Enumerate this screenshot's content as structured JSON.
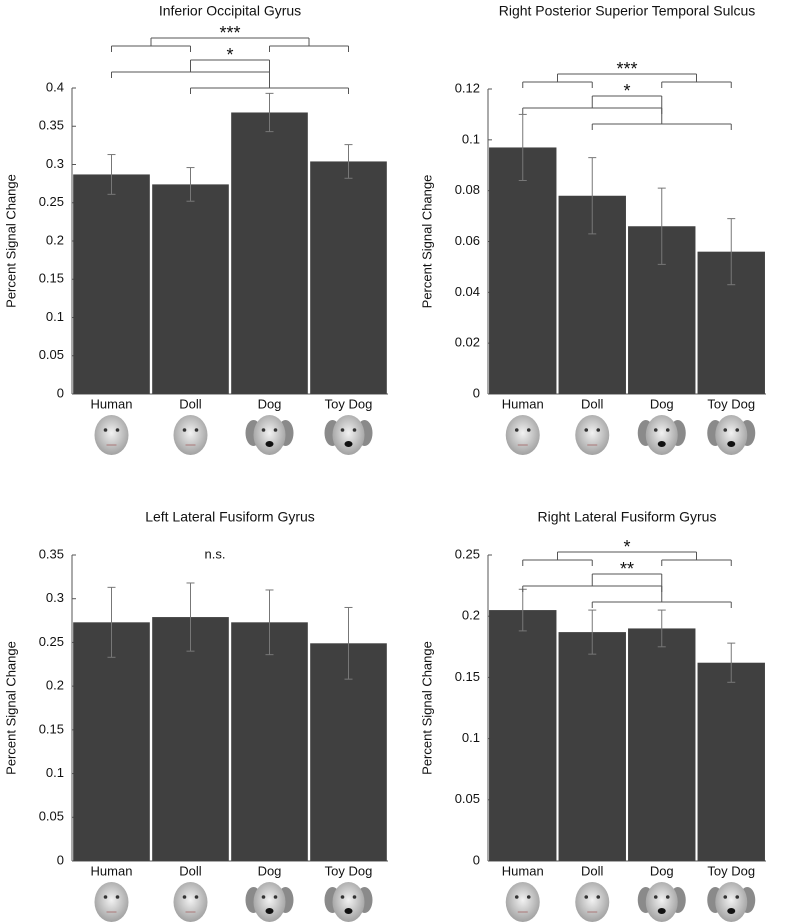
{
  "chart_data": [
    {
      "type": "bar",
      "title": "Inferior Occipital Gyrus",
      "ylabel": "Percent Signal Change",
      "categories": [
        "Human",
        "Doll",
        "Dog",
        "Toy Dog"
      ],
      "values": [
        0.287,
        0.274,
        0.368,
        0.304
      ],
      "errors": [
        0.026,
        0.022,
        0.025,
        0.022
      ],
      "color": "#404040",
      "ylim": [
        0,
        0.4
      ],
      "yticks": [
        0,
        0.05,
        0.1,
        0.15,
        0.2,
        0.25,
        0.3,
        0.35,
        0.4
      ],
      "significance": [
        "***",
        "*"
      ]
    },
    {
      "type": "bar",
      "title": "Right Posterior Superior Temporal Sulcus",
      "ylabel": "Percent Signal Change",
      "categories": [
        "Human",
        "Doll",
        "Dog",
        "Toy Dog"
      ],
      "values": [
        0.097,
        0.078,
        0.066,
        0.056
      ],
      "errors": [
        0.013,
        0.015,
        0.015,
        0.013
      ],
      "color": "#404040",
      "ylim": [
        0,
        0.12
      ],
      "yticks": [
        0,
        0.02,
        0.04,
        0.06,
        0.08,
        0.1,
        0.12
      ],
      "significance": [
        "***",
        "*"
      ]
    },
    {
      "type": "bar",
      "title": "Left Lateral Fusiform Gyrus",
      "ylabel": "Percent Signal Change",
      "categories": [
        "Human",
        "Doll",
        "Dog",
        "Toy Dog"
      ],
      "values": [
        0.273,
        0.279,
        0.273,
        0.249
      ],
      "errors": [
        0.04,
        0.039,
        0.037,
        0.041
      ],
      "color": "#404040",
      "ylim": [
        0,
        0.35
      ],
      "yticks": [
        0,
        0.05,
        0.1,
        0.15,
        0.2,
        0.25,
        0.3,
        0.35
      ],
      "significance": [
        "n.s."
      ]
    },
    {
      "type": "bar",
      "title": "Right Lateral Fusiform Gyrus",
      "ylabel": "Percent Signal Change",
      "categories": [
        "Human",
        "Doll",
        "Dog",
        "Toy Dog"
      ],
      "values": [
        0.205,
        0.187,
        0.19,
        0.162
      ],
      "errors": [
        0.017,
        0.018,
        0.015,
        0.016
      ],
      "color": "#404040",
      "ylim": [
        0,
        0.25
      ],
      "yticks": [
        0,
        0.05,
        0.1,
        0.15,
        0.2,
        0.25
      ],
      "significance": [
        "*",
        "**"
      ]
    }
  ]
}
